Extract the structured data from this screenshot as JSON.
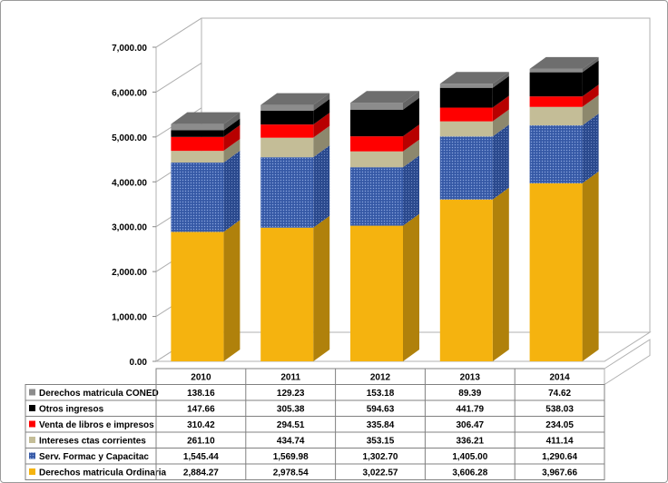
{
  "chart_data": {
    "type": "bar",
    "stacked": true,
    "three_d": true,
    "categories": [
      "2010",
      "2011",
      "2012",
      "2013",
      "2014"
    ],
    "ylim": [
      0,
      7000
    ],
    "yticks": [
      "0.00",
      "1,000.00",
      "2,000.00",
      "3,000.00",
      "4,000.00",
      "5,000.00",
      "6,000.00",
      "7,000.00"
    ],
    "series": [
      {
        "name": "Derechos matricula Ordinaria",
        "color": "#f5b30f",
        "values": [
          2884.27,
          2978.54,
          3022.57,
          3606.28,
          3967.66
        ],
        "labels": [
          "2,884.27",
          "2,978.54",
          "3,022.57",
          "3,606.28",
          "3,967.66"
        ]
      },
      {
        "name": "Serv. Formac y Capacitac",
        "color": "#3e62b0",
        "values": [
          1545.44,
          1569.98,
          1302.7,
          1405.0,
          1290.64
        ],
        "labels": [
          "1,545.44",
          "1,569.98",
          "1,302.70",
          "1,405.00",
          "1,290.64"
        ]
      },
      {
        "name": "Intereses ctas corrientes",
        "color": "#c4bd97",
        "values": [
          261.1,
          434.74,
          353.15,
          336.21,
          411.14
        ],
        "labels": [
          "261.10",
          "434.74",
          "353.15",
          "336.21",
          "411.14"
        ]
      },
      {
        "name": "Venta de libros e impresos",
        "color": "#ff0000",
        "values": [
          310.42,
          294.51,
          335.84,
          306.47,
          234.05
        ],
        "labels": [
          "310.42",
          "294.51",
          "335.84",
          "306.47",
          "234.05"
        ]
      },
      {
        "name": "Otros ingresos",
        "color": "#000000",
        "values": [
          147.66,
          305.38,
          594.63,
          441.79,
          538.03
        ],
        "labels": [
          "147.66",
          "305.38",
          "594.63",
          "441.79",
          "538.03"
        ]
      },
      {
        "name": "Derechos matricula CONED",
        "color": "#8c8c8c",
        "values": [
          138.16,
          129.23,
          153.18,
          89.39,
          74.62
        ],
        "labels": [
          "138.16",
          "129.23",
          "153.18",
          "89.39",
          "74.62"
        ]
      }
    ],
    "legend": "data-table-left",
    "grid": false
  }
}
